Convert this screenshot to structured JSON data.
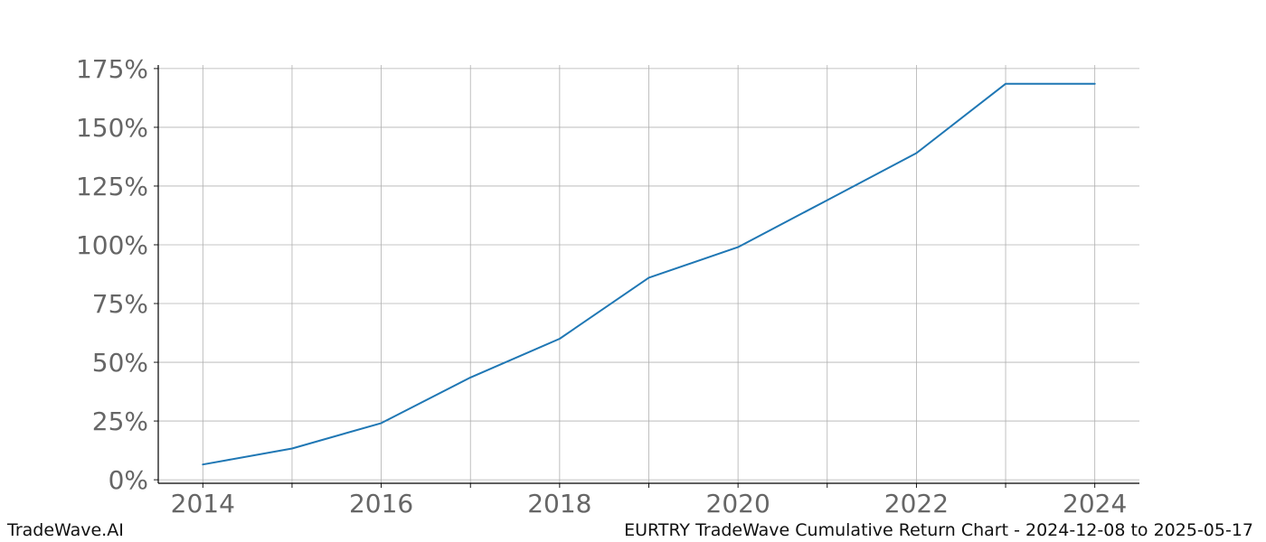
{
  "footer": {
    "brand": "TradeWave.AI",
    "caption": "EURTRY TradeWave Cumulative Return Chart - 2024-12-08 to 2025-05-17"
  },
  "chart_data": {
    "type": "line",
    "title": "",
    "xlabel": "",
    "ylabel": "",
    "xlim": [
      2013.5,
      2024.5
    ],
    "ylim": [
      -1.5,
      176.5
    ],
    "x_ticks": [
      2014,
      2015,
      2016,
      2017,
      2018,
      2019,
      2020,
      2021,
      2022,
      2023,
      2024
    ],
    "x_tick_labels": [
      "2014",
      "",
      "2016",
      "",
      "2018",
      "",
      "2020",
      "",
      "2022",
      "",
      "2024"
    ],
    "y_ticks": [
      0,
      25,
      50,
      75,
      100,
      125,
      150,
      175
    ],
    "y_tick_labels": [
      "0%",
      "25%",
      "50%",
      "75%",
      "100%",
      "125%",
      "150%",
      "175%"
    ],
    "grid": true,
    "line_color": "#1f77b4",
    "series": [
      {
        "x": [
          2014,
          2015,
          2016,
          2017,
          2018,
          2019,
          2020,
          2021,
          2022,
          2023,
          2024
        ],
        "values": [
          6.5,
          13.3,
          24.1,
          43.5,
          60.0,
          86.0,
          99.0,
          119.0,
          139.0,
          168.5,
          168.5
        ]
      }
    ]
  }
}
